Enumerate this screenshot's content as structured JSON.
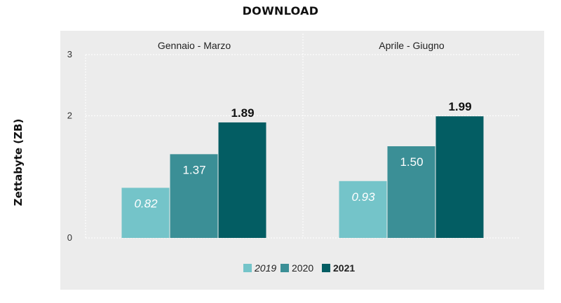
{
  "chart_data": {
    "type": "bar",
    "title": "DOWNLOAD",
    "ylabel": "Zettabyte (ZB)",
    "xlabel": "",
    "ylim": [
      0,
      3
    ],
    "yticks": [
      0,
      2,
      3
    ],
    "ytick_labels": [
      "0",
      "2",
      "3"
    ],
    "grid": true,
    "legend_position": "bottom-center",
    "panels": [
      "Gennaio - Marzo",
      "Aprile - Giugno"
    ],
    "series": [
      {
        "name": "2019",
        "values": [
          0.82,
          0.93
        ],
        "labels": [
          "0.82",
          "0.93"
        ],
        "color": "#74c4c9",
        "style": "italic"
      },
      {
        "name": "2020",
        "values": [
          1.37,
          1.5
        ],
        "labels": [
          "1.37",
          "1.50"
        ],
        "color": "#3b8f96",
        "style": "normal"
      },
      {
        "name": "2021",
        "values": [
          1.89,
          1.99
        ],
        "labels": [
          "1.89",
          "1.99"
        ],
        "color": "#035d63",
        "style": "bold"
      }
    ]
  }
}
